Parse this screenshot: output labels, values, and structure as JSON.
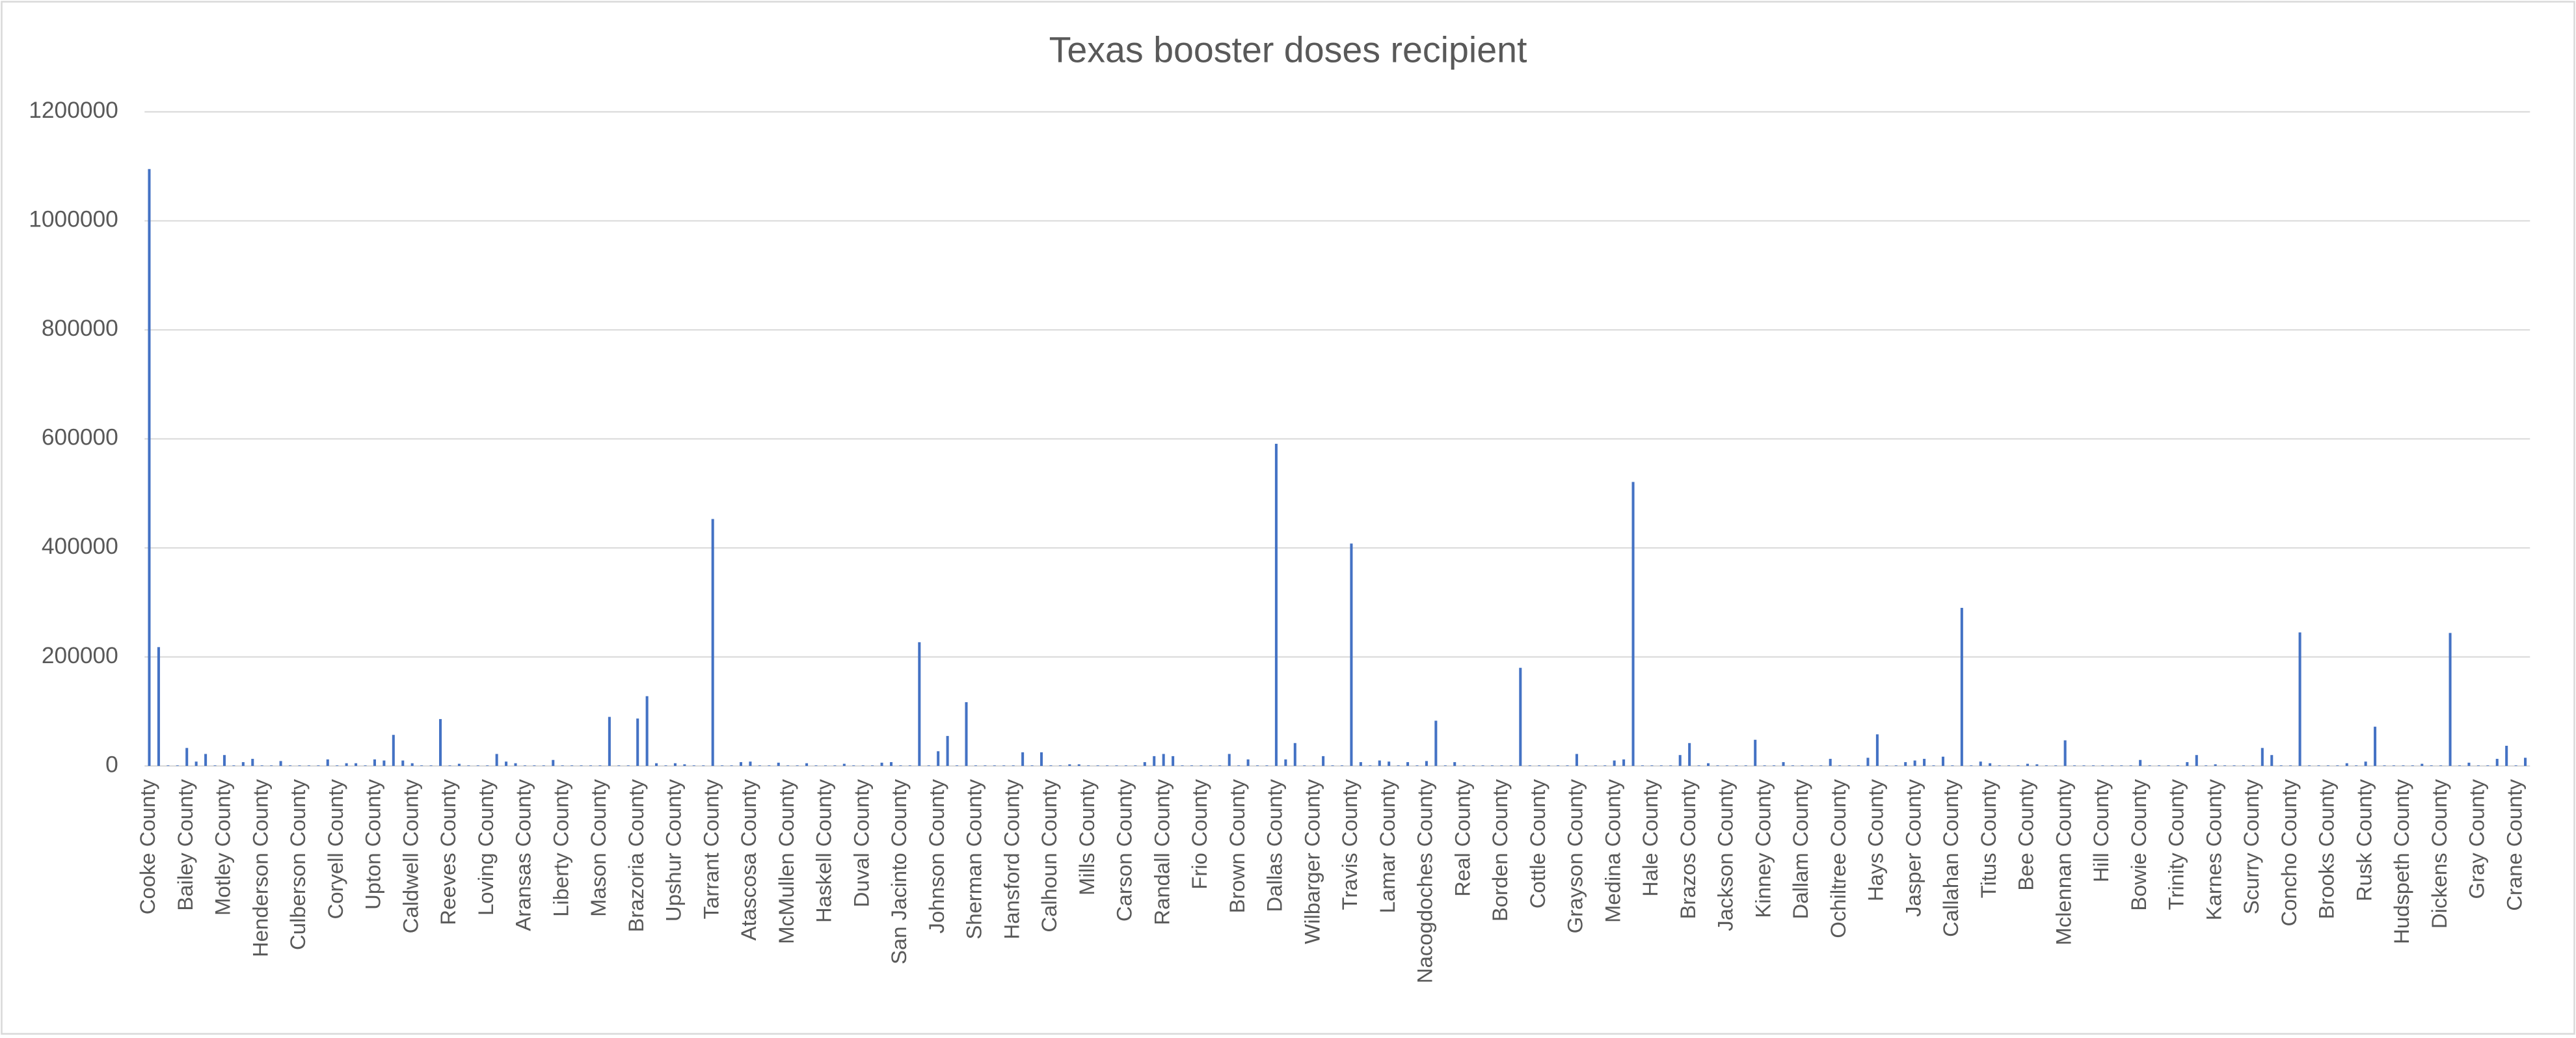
{
  "chart_data": {
    "type": "bar",
    "title": "Texas booster doses recipient",
    "color": "#4472c4",
    "categories": [
      "Cooke County",
      null,
      null,
      null,
      "Bailey County",
      null,
      null,
      null,
      "Motley County",
      null,
      null,
      null,
      "Henderson County",
      null,
      null,
      null,
      "Culberson County",
      null,
      null,
      null,
      "Coryell County",
      null,
      null,
      null,
      "Upton County",
      null,
      null,
      null,
      "Caldwell County",
      null,
      null,
      null,
      "Reeves County",
      null,
      null,
      null,
      "Loving County",
      null,
      null,
      null,
      "Aransas County",
      null,
      null,
      null,
      "Liberty County",
      null,
      null,
      null,
      "Mason County",
      null,
      null,
      null,
      "Brazoria County",
      null,
      null,
      null,
      "Upshur County",
      null,
      null,
      null,
      "Tarrant County",
      null,
      null,
      null,
      "Atascosa County",
      null,
      null,
      null,
      "McMullen County",
      null,
      null,
      null,
      "Haskell County",
      null,
      null,
      null,
      "Duval County",
      null,
      null,
      null,
      "San Jacinto County",
      null,
      null,
      null,
      "Johnson County",
      null,
      null,
      null,
      "Sherman County",
      null,
      null,
      null,
      "Hansford County",
      null,
      null,
      null,
      "Calhoun County",
      null,
      null,
      null,
      "Mills County",
      null,
      null,
      null,
      "Carson County",
      null,
      null,
      null,
      "Randall County",
      null,
      null,
      null,
      "Frio County",
      null,
      null,
      null,
      "Brown County",
      null,
      null,
      null,
      "Dallas County",
      null,
      null,
      null,
      "Wilbarger County",
      null,
      null,
      null,
      "Travis County",
      null,
      null,
      null,
      "Lamar County",
      null,
      null,
      null,
      "Nacogdoches County",
      null,
      null,
      null,
      "Real County",
      null,
      null,
      null,
      "Borden County",
      null,
      null,
      null,
      "Cottle County",
      null,
      null,
      null,
      "Grayson County",
      null,
      null,
      null,
      "Medina County",
      null,
      null,
      null,
      "Hale County",
      null,
      null,
      null,
      "Brazos County",
      null,
      null,
      null,
      "Jackson County",
      null,
      null,
      null,
      "Kinney County",
      null,
      null,
      null,
      "Dallam County",
      null,
      null,
      null,
      "Ochiltree County",
      null,
      null,
      null,
      "Hays County",
      null,
      null,
      null,
      "Jasper County",
      null,
      null,
      null,
      "Callahan County",
      null,
      null,
      null,
      "Titus County",
      null,
      null,
      null,
      "Bee County",
      null,
      null,
      null,
      "Mclennan County",
      null,
      null,
      null,
      "Hill County",
      null,
      null,
      null,
      "Bowie County",
      null,
      null,
      null,
      "Trinity County",
      null,
      null,
      null,
      "Karnes County",
      null,
      null,
      null,
      "Scurry County",
      null,
      null,
      null,
      "Concho County",
      null,
      null,
      null,
      "Brooks County",
      null,
      null,
      null,
      "Rusk County",
      null,
      null,
      null,
      "Hudspeth County",
      null,
      null,
      null,
      "Dickens County",
      null,
      null,
      null,
      "Gray County",
      null,
      null,
      null,
      "Crane County",
      null
    ],
    "values": [
      1095000,
      218000,
      1000,
      1000,
      33000,
      8000,
      22000,
      1000,
      20000,
      1000,
      7000,
      13000,
      1000,
      1000,
      9000,
      1000,
      1000,
      1000,
      1000,
      12000,
      1000,
      5000,
      5000,
      1000,
      12000,
      10000,
      57000,
      10000,
      5000,
      1000,
      1000,
      86000,
      1000,
      4000,
      1000,
      1000,
      1000,
      22000,
      8000,
      5000,
      1000,
      1000,
      1000,
      11000,
      1000,
      1000,
      1000,
      1000,
      1000,
      90000,
      1000,
      1000,
      87000,
      128000,
      5000,
      1000,
      5000,
      3000,
      1000,
      1000,
      453000,
      1000,
      1000,
      7000,
      8000,
      1000,
      1000,
      6000,
      1000,
      1000,
      5000,
      1000,
      1000,
      1000,
      4000,
      1000,
      1000,
      1000,
      6000,
      7000,
      1000,
      1000,
      227000,
      1000,
      27000,
      55000,
      1000,
      117000,
      1000,
      1000,
      1000,
      1000,
      1000,
      25000,
      1000,
      25000,
      1000,
      1000,
      3000,
      3000,
      1000,
      1000,
      1000,
      1000,
      1000,
      1000,
      7000,
      18000,
      22000,
      18000,
      1000,
      1000,
      1000,
      1000,
      1000,
      22000,
      1000,
      12000,
      1000,
      1000,
      591000,
      12000,
      42000,
      1000,
      1000,
      18000,
      1000,
      1000,
      408000,
      7000,
      1000,
      10000,
      8000,
      1000,
      7000,
      1000,
      9000,
      83000,
      1000,
      7000,
      1000,
      1000,
      1000,
      1000,
      1000,
      1000,
      180000,
      1000,
      1000,
      1000,
      1000,
      1000,
      22000,
      1000,
      1000,
      1000,
      10000,
      12000,
      521000,
      1000,
      1000,
      1000,
      1000,
      20000,
      42000,
      1000,
      5000,
      1000,
      1000,
      1000,
      1000,
      48000,
      1000,
      1000,
      7000,
      1000,
      1000,
      1000,
      1000,
      13000,
      1000,
      1000,
      1000,
      15000,
      58000,
      1000,
      1000,
      7000,
      10000,
      13000,
      1000,
      17000,
      1000,
      290000,
      1000,
      8000,
      5000,
      1000,
      1000,
      1000,
      4000,
      3000,
      1000,
      1000,
      47000,
      1000,
      1000,
      1000,
      1000,
      1000,
      1000,
      1000,
      11000,
      1000,
      1000,
      1000,
      1000,
      7000,
      20000,
      1000,
      3000,
      1000,
      1000,
      1000,
      1000,
      33000,
      20000,
      1000,
      1000,
      245000,
      1000,
      1000,
      1000,
      1000,
      5000,
      1000,
      8000,
      72000,
      1000,
      1000,
      1000,
      1000,
      4000,
      1000,
      1000,
      244000,
      1000,
      6000,
      1000,
      1000,
      13000,
      37000,
      1000,
      15000
    ],
    "ylim": [
      0,
      1200000
    ],
    "yticks": [
      0,
      200000,
      400000,
      600000,
      800000,
      1000000,
      1200000
    ],
    "grid": true
  }
}
